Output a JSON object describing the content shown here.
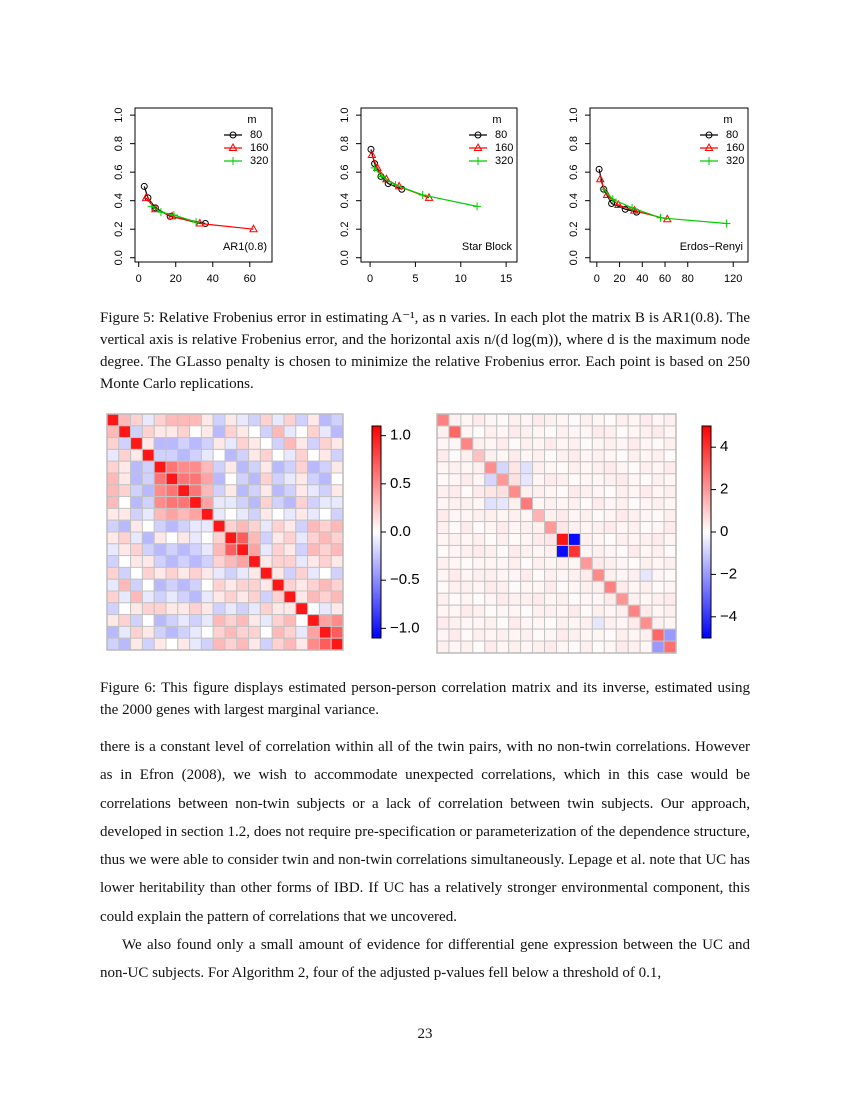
{
  "chart_data": [
    {
      "type": "line",
      "annotation": "AR1(0.8)",
      "legend_title": "m",
      "legend": "top-right",
      "xlim": [
        -2,
        72
      ],
      "xticks": [
        0,
        20,
        40,
        60
      ],
      "ylim": [
        -0.03,
        1.05
      ],
      "yticks": [
        {
          "value": 0,
          "label": "0.0"
        },
        0.2,
        0.4,
        0.6,
        0.8,
        {
          "value": 1,
          "label": "1.0"
        }
      ],
      "series": [
        {
          "name": "80",
          "color": "#000000",
          "marker": "circle",
          "x": [
            3,
            5,
            9,
            17,
            36
          ],
          "values": [
            0.5,
            0.42,
            0.35,
            0.29,
            0.24
          ]
        },
        {
          "name": "160",
          "color": "#ff0000",
          "marker": "triangle",
          "x": [
            4,
            9,
            18,
            33,
            62
          ],
          "values": [
            0.42,
            0.34,
            0.29,
            0.24,
            0.2
          ]
        },
        {
          "name": "320",
          "color": "#00cd00",
          "marker": "plus",
          "x": [
            7,
            12,
            19,
            31
          ],
          "values": [
            0.36,
            0.32,
            0.3,
            0.25
          ]
        }
      ]
    },
    {
      "type": "line",
      "annotation": "Star Block",
      "legend_title": "m",
      "legend": "top-right",
      "xlim": [
        -1,
        16.2
      ],
      "xticks": [
        0,
        5,
        10,
        15
      ],
      "ylim": [
        -0.03,
        1.05
      ],
      "yticks": [
        {
          "value": 0,
          "label": "0.0"
        },
        0.2,
        0.4,
        0.6,
        0.8,
        {
          "value": 1,
          "label": "1.0"
        }
      ],
      "series": [
        {
          "name": "80",
          "color": "#000000",
          "marker": "circle",
          "x": [
            0.1,
            0.5,
            1.2,
            2,
            3.5
          ],
          "values": [
            0.76,
            0.66,
            0.57,
            0.52,
            0.48
          ]
        },
        {
          "name": "160",
          "color": "#ff0000",
          "marker": "triangle",
          "x": [
            0.2,
            0.8,
            1.8,
            3.2,
            6.5
          ],
          "values": [
            0.72,
            0.63,
            0.55,
            0.5,
            0.42
          ]
        },
        {
          "name": "320",
          "color": "#00cd00",
          "marker": "plus",
          "x": [
            0.5,
            1.3,
            2.8,
            5.8,
            11.8
          ],
          "values": [
            0.63,
            0.57,
            0.51,
            0.44,
            0.36
          ]
        }
      ]
    },
    {
      "type": "line",
      "annotation": "Erdos−Renyi",
      "legend_title": "m",
      "legend": "top-right",
      "xlim": [
        -6,
        133
      ],
      "xticks": [
        0,
        20,
        40,
        60,
        80,
        120
      ],
      "ylim": [
        -0.03,
        1.05
      ],
      "yticks": [
        {
          "value": 0,
          "label": "0.0"
        },
        0.2,
        0.4,
        0.6,
        0.8,
        {
          "value": 1,
          "label": "1.0"
        }
      ],
      "series": [
        {
          "name": "80",
          "color": "#000000",
          "marker": "circle",
          "x": [
            2,
            6,
            13,
            25,
            35
          ],
          "values": [
            0.62,
            0.48,
            0.38,
            0.34,
            0.32
          ]
        },
        {
          "name": "160",
          "color": "#ff0000",
          "marker": "triangle",
          "x": [
            3,
            9,
            19,
            33,
            62
          ],
          "values": [
            0.55,
            0.44,
            0.37,
            0.33,
            0.27
          ]
        },
        {
          "name": "320",
          "color": "#00cd00",
          "marker": "plus",
          "x": [
            6,
            14,
            31,
            56,
            114
          ],
          "values": [
            0.48,
            0.41,
            0.35,
            0.28,
            0.24
          ]
        }
      ]
    },
    {
      "type": "heatmap",
      "colors": [
        "#0000ff",
        "#ffffff",
        "#ff0000"
      ],
      "zlim": [
        -1.1,
        1.1
      ],
      "zticks": [
        {
          "value": 1,
          "label": "1.0"
        },
        0.5,
        {
          "value": 0,
          "label": "0.0"
        },
        {
          "value": -0.5,
          "label": "−0.5"
        },
        {
          "value": -1,
          "label": "−1.0"
        }
      ],
      "values": [
        [
          1,
          0.3,
          0.2,
          -0.1,
          0.2,
          0.3,
          0.3,
          0.3,
          0.1,
          -0.2,
          0.1,
          -0.1,
          -0.2,
          0.2,
          -0.1,
          0.2,
          -0.2,
          0.1,
          -0.3,
          -0.2
        ],
        [
          0.3,
          1,
          -0.2,
          0.2,
          0.1,
          0.1,
          0.2,
          0,
          0.1,
          -0.3,
          0.2,
          0.1,
          0,
          -0.2,
          0.3,
          -0.1,
          0,
          0.2,
          -0.1,
          -0.3
        ],
        [
          0.2,
          -0.2,
          1,
          0.1,
          -0.3,
          -0.3,
          -0.2,
          -0.3,
          -0.2,
          0.1,
          -0.1,
          0.2,
          0.1,
          0,
          -0.2,
          0.3,
          0.1,
          -0.2,
          0.2,
          0.1
        ],
        [
          -0.1,
          0.2,
          0.1,
          1,
          -0.2,
          -0.2,
          -0.3,
          -0.2,
          -0.1,
          0,
          -0.3,
          -0.2,
          0.1,
          0.2,
          0,
          -0.1,
          0.2,
          0,
          0.1,
          -0.2
        ],
        [
          0.2,
          0.1,
          -0.3,
          -0.2,
          1,
          0.6,
          0.5,
          0.5,
          0.3,
          -0.2,
          0.1,
          -0.3,
          -0.2,
          0.1,
          -0.3,
          -0.2,
          0.2,
          -0.3,
          -0.2,
          0.1
        ],
        [
          0.3,
          0.1,
          -0.3,
          -0.2,
          0.6,
          1,
          0.6,
          0.6,
          0.4,
          -0.3,
          0,
          -0.2,
          -0.3,
          0.2,
          -0.2,
          -0.1,
          0.1,
          -0.2,
          -0.3,
          0
        ],
        [
          0.3,
          0.2,
          -0.2,
          -0.3,
          0.5,
          0.6,
          1,
          0.6,
          0.3,
          -0.2,
          0.1,
          -0.3,
          -0.2,
          0.1,
          -0.3,
          -0.2,
          0.1,
          -0.1,
          -0.2,
          0.1
        ],
        [
          0.3,
          0,
          -0.3,
          -0.2,
          0.5,
          0.6,
          0.6,
          1,
          0.4,
          -0.1,
          -0.1,
          -0.2,
          -0.3,
          0.2,
          -0.2,
          -0.3,
          0.2,
          -0.2,
          -0.1,
          -0.1
        ],
        [
          0.1,
          0.1,
          -0.2,
          -0.1,
          0.3,
          0.4,
          0.3,
          0.4,
          1,
          -0.1,
          0,
          -0.1,
          -0.2,
          0.1,
          0,
          -0.1,
          0.1,
          -0.1,
          0,
          -0.2
        ],
        [
          -0.2,
          -0.3,
          0.1,
          0,
          -0.2,
          -0.3,
          -0.2,
          -0.1,
          -0.1,
          1,
          0.2,
          0.3,
          0.2,
          -0.1,
          0.2,
          0.1,
          -0.2,
          0.3,
          0.2,
          0.3
        ],
        [
          0.1,
          0.2,
          -0.1,
          -0.3,
          0.1,
          0,
          0.1,
          -0.1,
          0,
          0.2,
          1,
          0.7,
          0.3,
          -0.2,
          0.1,
          0.2,
          -0.1,
          0.2,
          0.3,
          0.2
        ],
        [
          -0.1,
          0.1,
          0.2,
          -0.2,
          -0.3,
          -0.2,
          -0.3,
          -0.2,
          -0.1,
          0.3,
          0.7,
          1,
          0.4,
          -0.1,
          0.2,
          0.1,
          -0.2,
          0.3,
          0.2,
          0.3
        ],
        [
          -0.2,
          0,
          0.1,
          0.1,
          -0.2,
          -0.3,
          -0.2,
          -0.3,
          -0.2,
          0.2,
          0.3,
          0.4,
          1,
          0.1,
          0.2,
          0.2,
          -0.1,
          0.1,
          0.2,
          0.1
        ],
        [
          0.2,
          -0.2,
          0,
          0.2,
          0.1,
          0.2,
          0.1,
          0.2,
          0.1,
          -0.1,
          -0.2,
          -0.1,
          0.1,
          1,
          0.1,
          -0.2,
          0.2,
          -0.1,
          0,
          -0.2
        ],
        [
          -0.1,
          0.3,
          -0.2,
          0,
          -0.3,
          -0.2,
          -0.3,
          -0.2,
          0,
          0.2,
          0.1,
          0.2,
          0.2,
          0.1,
          1,
          0.2,
          0.1,
          0.2,
          0.3,
          0.2
        ],
        [
          0.2,
          -0.1,
          0.3,
          -0.1,
          -0.2,
          -0.1,
          -0.2,
          -0.3,
          -0.1,
          0.1,
          0.2,
          0.1,
          0.2,
          -0.2,
          0.2,
          1,
          0.1,
          0.3,
          0.2,
          0.3
        ],
        [
          -0.2,
          0,
          0.1,
          0.2,
          0.2,
          0.1,
          0.1,
          0.2,
          0.1,
          -0.2,
          -0.1,
          -0.2,
          -0.1,
          0.2,
          0.1,
          0.1,
          1,
          0,
          -0.1,
          0.1
        ],
        [
          0.1,
          0.2,
          -0.2,
          0,
          -0.3,
          -0.2,
          -0.1,
          -0.2,
          -0.1,
          0.3,
          0.2,
          0.3,
          0.1,
          -0.1,
          0.2,
          0.3,
          0,
          1,
          0.4,
          0.5
        ],
        [
          -0.3,
          -0.1,
          0.2,
          0.1,
          -0.2,
          -0.3,
          -0.2,
          -0.1,
          0,
          0.2,
          0.3,
          0.2,
          0.2,
          0,
          0.3,
          0.2,
          -0.1,
          0.4,
          1,
          0.7
        ],
        [
          -0.2,
          -0.3,
          0.1,
          -0.2,
          0.1,
          0,
          0.1,
          -0.1,
          -0.2,
          0.3,
          0.2,
          0.3,
          0.1,
          -0.2,
          0.2,
          0.3,
          0.1,
          0.5,
          0.7,
          1
        ]
      ]
    },
    {
      "type": "heatmap",
      "colors": [
        "#0000ff",
        "#ffffff",
        "#ff0000"
      ],
      "zlim": [
        -5,
        5
      ],
      "zticks": [
        4,
        2,
        0,
        {
          "value": -2,
          "label": "−2"
        },
        {
          "value": -4,
          "label": "−4"
        }
      ],
      "values": [
        [
          2.5,
          0.3,
          0.2,
          0.4,
          0.2,
          0.1,
          0.3,
          0.2,
          0.4,
          0.3,
          0.2,
          0.1,
          0.3,
          0.2,
          0.1,
          0.3,
          0.2,
          0.4,
          0.2,
          0.3
        ],
        [
          0.3,
          3.0,
          0.2,
          0.1,
          0.3,
          0.2,
          0.4,
          0.3,
          0.2,
          0.1,
          0.3,
          0.2,
          0.2,
          0.4,
          0.3,
          0.1,
          0.2,
          0.3,
          0.4,
          0.2
        ],
        [
          0.2,
          0.2,
          2.4,
          0.3,
          0.2,
          0.4,
          0.1,
          0.3,
          0.2,
          0.4,
          0.2,
          0.3,
          0.1,
          0.2,
          0.3,
          0.2,
          0.4,
          0.2,
          0.1,
          0.3
        ],
        [
          0.4,
          0.1,
          0.3,
          1.2,
          0.3,
          0.2,
          0.4,
          0.2,
          0.3,
          0.1,
          0.3,
          0.4,
          0.2,
          0.3,
          0.2,
          0.1,
          0.3,
          0.2,
          0.3,
          0.1
        ],
        [
          0.2,
          0.3,
          0.2,
          0.3,
          2.2,
          -0.8,
          0.5,
          -0.6,
          0.3,
          0.2,
          0.1,
          0.3,
          0.2,
          0.3,
          0.4,
          0.2,
          0.1,
          0.3,
          0.2,
          0.4
        ],
        [
          0.1,
          0.2,
          0.4,
          0.2,
          -0.8,
          2.0,
          0.6,
          -0.5,
          0.2,
          0.4,
          0.3,
          0.1,
          0.2,
          0.2,
          0.3,
          0.4,
          0.2,
          0.1,
          0.3,
          0.2
        ],
        [
          0.3,
          0.4,
          0.1,
          0.4,
          0.5,
          0.6,
          2.3,
          0.3,
          0.3,
          0.2,
          0.1,
          0.4,
          0.3,
          0.2,
          0.1,
          0.3,
          0.2,
          0.4,
          0.2,
          0.3
        ],
        [
          0.2,
          0.3,
          0.3,
          0.2,
          -0.6,
          -0.5,
          0.3,
          2.6,
          0.2,
          0.3,
          0.2,
          0.3,
          0.1,
          0.4,
          0.2,
          0.3,
          0.1,
          0.2,
          0.3,
          0.2
        ],
        [
          0.4,
          0.2,
          0.2,
          0.3,
          0.3,
          0.2,
          0.3,
          0.2,
          1.5,
          0.3,
          0.4,
          0.2,
          0.3,
          0.1,
          0.2,
          0.4,
          0.3,
          0.2,
          0.1,
          0.3
        ],
        [
          0.3,
          0.1,
          0.4,
          0.1,
          0.2,
          0.4,
          0.2,
          0.3,
          0.3,
          2.0,
          0.5,
          0.3,
          0.2,
          0.3,
          0.4,
          0.2,
          0.3,
          0.1,
          0.2,
          0.4
        ],
        [
          0.2,
          0.3,
          0.2,
          0.3,
          0.1,
          0.3,
          0.1,
          0.2,
          0.4,
          0.5,
          4.6,
          -4.8,
          0.3,
          0.2,
          0.1,
          0.3,
          0.2,
          0.3,
          0.4,
          0.2
        ],
        [
          0.1,
          0.2,
          0.3,
          0.4,
          0.3,
          0.1,
          0.4,
          0.3,
          0.2,
          0.3,
          -4.8,
          4.0,
          0.2,
          0.3,
          0.2,
          0.1,
          0.4,
          0.2,
          0.3,
          0.1
        ],
        [
          0.3,
          0.2,
          0.1,
          0.2,
          0.2,
          0.2,
          0.3,
          0.1,
          0.3,
          0.2,
          0.3,
          0.2,
          2.0,
          0.4,
          0.3,
          0.2,
          0.1,
          0.3,
          0.2,
          0.3
        ],
        [
          0.2,
          0.4,
          0.2,
          0.3,
          0.3,
          0.2,
          0.2,
          0.4,
          0.1,
          0.3,
          0.2,
          0.3,
          0.4,
          2.3,
          0.3,
          0.2,
          0.3,
          -0.5,
          0.2,
          0.1
        ],
        [
          0.1,
          0.3,
          0.3,
          0.2,
          0.4,
          0.3,
          0.1,
          0.2,
          0.2,
          0.4,
          0.1,
          0.2,
          0.3,
          0.3,
          2.5,
          0.4,
          0.2,
          0.3,
          0.1,
          0.2
        ],
        [
          0.3,
          0.1,
          0.2,
          0.1,
          0.2,
          0.4,
          0.3,
          0.3,
          0.4,
          0.2,
          0.3,
          0.1,
          0.2,
          0.2,
          0.4,
          2.1,
          0.3,
          0.2,
          0.3,
          0.4
        ],
        [
          0.2,
          0.2,
          0.4,
          0.3,
          0.1,
          0.2,
          0.2,
          0.1,
          0.3,
          0.3,
          0.2,
          0.4,
          0.1,
          0.3,
          0.2,
          0.3,
          2.4,
          0.4,
          0.2,
          0.3
        ],
        [
          0.4,
          0.3,
          0.2,
          0.2,
          0.3,
          0.1,
          0.4,
          0.2,
          0.2,
          0.1,
          0.3,
          0.2,
          0.3,
          -0.5,
          0.3,
          0.2,
          0.4,
          2.2,
          0.3,
          0.2
        ],
        [
          0.2,
          0.4,
          0.1,
          0.3,
          0.2,
          0.3,
          0.2,
          0.3,
          0.1,
          0.2,
          0.4,
          0.3,
          0.2,
          0.2,
          0.1,
          0.3,
          0.2,
          0.3,
          3.0,
          -2.0
        ],
        [
          0.3,
          0.2,
          0.3,
          0.1,
          0.4,
          0.2,
          0.3,
          0.2,
          0.3,
          0.4,
          0.2,
          0.1,
          0.3,
          0.1,
          0.2,
          0.4,
          0.3,
          0.2,
          -2.0,
          2.8
        ]
      ]
    }
  ],
  "figure5_caption": "Figure 5: Relative Frobenius error in estimating A⁻¹, as n varies. In each plot the matrix B is AR1(0.8). The vertical axis is relative Frobenius error, and the horizontal axis n/(d log(m)), where d is the maximum node degree. The GLasso penalty is chosen to minimize the relative Frobenius error. Each point is based on 250 Monte Carlo replications.",
  "figure6_caption": "Figure 6: This figure displays estimated person-person correlation matrix and its inverse, estimated using the 2000 genes with largest marginal variance.",
  "paragraphs": [
    "there is a constant level of correlation within all of the twin pairs, with no non-twin correlations. However as in Efron (2008), we wish to accommodate unexpected correlations, which in this case would be correlations between non-twin subjects or a lack of correlation between twin subjects. Our approach, developed in section 1.2, does not require pre-specification or parameterization of the dependence structure, thus we were able to consider twin and non-twin correlations simultaneously. Lepage et al. note that UC has lower heritability than other forms of IBD. If UC has a relatively stronger environmental component, this could explain the pattern of correlations that we uncovered.",
    "We also found only a small amount of evidence for differential gene expression between the UC and non-UC subjects. For Algorithm 2, four of the adjusted p-values fell below a threshold of 0.1,"
  ],
  "page_number": "23"
}
